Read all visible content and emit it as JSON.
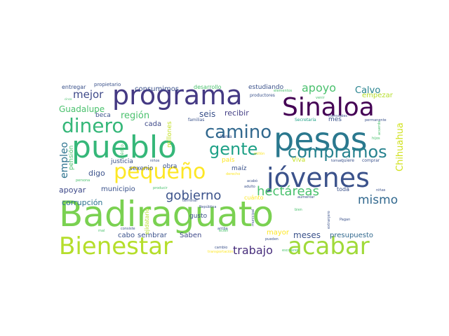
{
  "wordcloud": {
    "background": "#ffffff",
    "palette": "viridis",
    "words": [
      {
        "text": "Badiraguato",
        "color": "#7ad151"
      },
      {
        "text": "pesos",
        "color": "#2a788e"
      },
      {
        "text": "pueblo",
        "color": "#35b779"
      },
      {
        "text": "jóvenes",
        "color": "#3b528b"
      },
      {
        "text": "programa",
        "color": "#443983"
      },
      {
        "text": "Sinaloa",
        "color": "#440154"
      },
      {
        "text": "Bienestar",
        "color": "#b5de2b"
      },
      {
        "text": "acabar",
        "color": "#a0da39"
      },
      {
        "text": "pequeño",
        "color": "#fde725"
      },
      {
        "text": "camino",
        "color": "#31688e"
      },
      {
        "text": "dinero",
        "color": "#35b779"
      },
      {
        "text": "compramos",
        "color": "#26828e"
      },
      {
        "text": "gente",
        "color": "#1fa187"
      },
      {
        "text": "gobierno",
        "color": "#3b528b"
      },
      {
        "text": "hectáreas",
        "color": "#4ac16d"
      },
      {
        "text": "mismo",
        "color": "#31688e"
      },
      {
        "text": "trabajo",
        "color": "#472d7b"
      },
      {
        "text": "apoyo",
        "color": "#4ac16d"
      },
      {
        "text": "mejor",
        "color": "#3e4989"
      },
      {
        "text": "empleo",
        "color": "#2c728e"
      },
      {
        "text": "región",
        "color": "#4ac16d"
      },
      {
        "text": "Calvo",
        "color": "#26828e"
      },
      {
        "text": "Guadalupe",
        "color": "#4ac16d"
      },
      {
        "text": "seis",
        "color": "#3b528b"
      },
      {
        "text": "recibir",
        "color": "#433e85"
      },
      {
        "text": "Chihuahua",
        "color": "#d0e11c"
      },
      {
        "text": "meses",
        "color": "#3b528b"
      },
      {
        "text": "consumimos",
        "color": "#3b528b"
      },
      {
        "text": "estudiando",
        "color": "#3b528b"
      },
      {
        "text": "empezar",
        "color": "#b5de2b"
      },
      {
        "text": "cada",
        "color": "#3e4989"
      },
      {
        "text": "apoyar",
        "color": "#3e4989"
      },
      {
        "text": "corrupción",
        "color": "#2c728e"
      },
      {
        "text": "municipio",
        "color": "#3b528b"
      },
      {
        "text": "digo",
        "color": "#3b528b"
      },
      {
        "text": "mayor",
        "color": "#fde725"
      },
      {
        "text": "presupuesto",
        "color": "#31688e"
      },
      {
        "text": "Saben",
        "color": "#3e4989"
      },
      {
        "text": "sembrar",
        "color": "#3b528b"
      },
      {
        "text": "cabo",
        "color": "#3b528b"
      },
      {
        "text": "gusto",
        "color": "#3b528b"
      },
      {
        "text": "obra",
        "color": "#3b528b"
      },
      {
        "text": "justicia",
        "color": "#3b528b"
      },
      {
        "text": "sexenio",
        "color": "#3b528b"
      },
      {
        "text": "millones",
        "color": "#c2df23"
      },
      {
        "text": "pensión",
        "color": "#4ac16d"
      },
      {
        "text": "país",
        "color": "#fde725"
      },
      {
        "text": "maíz",
        "color": "#3b528b"
      },
      {
        "text": "Viva",
        "color": "#c2df23"
      },
      {
        "text": "toda",
        "color": "#3b528b"
      },
      {
        "text": "mes",
        "color": "#3b528b"
      },
      {
        "text": "beca",
        "color": "#3b528b"
      },
      {
        "text": "cuánto",
        "color": "#fde725"
      },
      {
        "text": "desarrollo",
        "color": "#4ac16d"
      },
      {
        "text": "entregar",
        "color": "#3b528b"
      },
      {
        "text": "propietario",
        "color": "#3b528b"
      },
      {
        "text": "ejidatario",
        "color": "#b5de2b"
      },
      {
        "text": "crédito",
        "color": "#4ac16d"
      },
      {
        "text": "familias",
        "color": "#3b528b"
      },
      {
        "text": "productores",
        "color": "#3b528b"
      },
      {
        "text": "Secretaría",
        "color": "#1fa187"
      },
      {
        "text": "mensuales",
        "color": "#3b528b"
      },
      {
        "text": "permanente",
        "color": "#3b528b"
      },
      {
        "text": "elementos",
        "color": "#4ac16d"
      },
      {
        "text": "venir",
        "color": "#4ac16d"
      },
      {
        "text": "llama",
        "color": "#3b528b"
      },
      {
        "text": "millón",
        "color": "#fde725"
      },
      {
        "text": "tomar",
        "color": "#3b528b"
      },
      {
        "text": "quiere",
        "color": "#3b528b"
      },
      {
        "text": "comprar",
        "color": "#3b528b"
      },
      {
        "text": "hijos",
        "color": "#4ac16d"
      },
      {
        "text": "niños",
        "color": "#3b528b"
      },
      {
        "text": "persona",
        "color": "#4ac16d"
      },
      {
        "text": "producir",
        "color": "#4ac16d"
      },
      {
        "text": "República",
        "color": "#3b528b"
      },
      {
        "text": "acabó",
        "color": "#3b528b"
      },
      {
        "text": "adulto",
        "color": "#3b528b"
      },
      {
        "text": "aumentar",
        "color": "#3b528b"
      },
      {
        "text": "terminar",
        "color": "#3b528b"
      },
      {
        "text": "arriba",
        "color": "#3b528b"
      },
      {
        "text": "consiste",
        "color": "#3b528b"
      },
      {
        "text": "municipal",
        "color": "#3b528b"
      },
      {
        "text": "bien",
        "color": "#4ac16d"
      },
      {
        "text": "extranjero",
        "color": "#3b528b"
      },
      {
        "text": "Pagan",
        "color": "#3b528b"
      },
      {
        "text": "pueden",
        "color": "#3b528b"
      },
      {
        "text": "cambio",
        "color": "#3b528b"
      },
      {
        "text": "transportación",
        "color": "#fde725"
      },
      {
        "text": "mal",
        "color": "#4ac16d"
      },
      {
        "text": "ecién",
        "color": "#4ac16d"
      },
      {
        "text": "derecho",
        "color": "#fde725"
      },
      {
        "text": "escolares",
        "color": "#4ac16d"
      },
      {
        "text": "cinco",
        "color": "#4ac16d"
      },
      {
        "text": "acuerdo",
        "color": "#4ac16d"
      },
      {
        "text": "niñas",
        "color": "#3b528b"
      }
    ]
  }
}
